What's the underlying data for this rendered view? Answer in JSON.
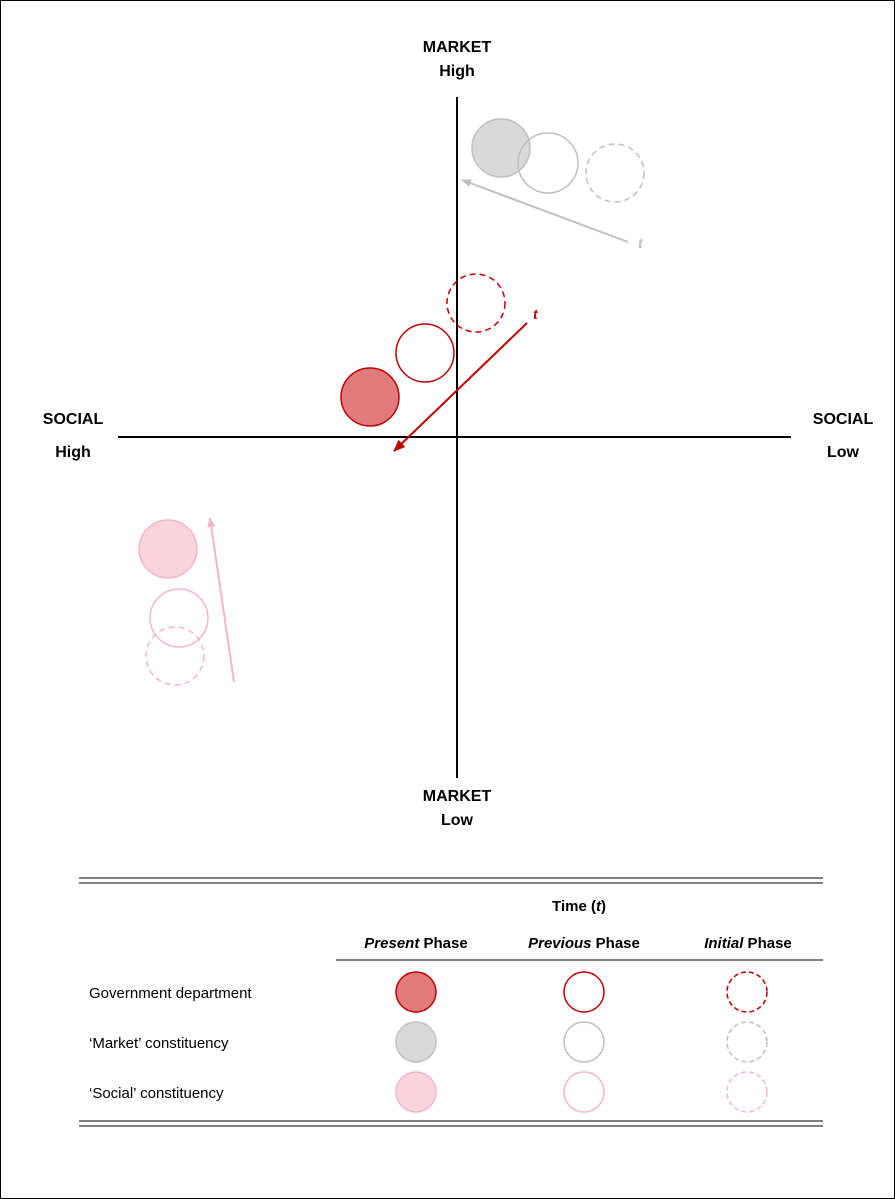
{
  "axes": {
    "top": {
      "line1": "MARKET",
      "line2": "High"
    },
    "bottom": {
      "line1": "MARKET",
      "line2": "Low"
    },
    "left": {
      "line1": "SOCIAL",
      "line2": "High"
    },
    "right": {
      "line1": "SOCIAL",
      "line2": "Low"
    }
  },
  "time_marker": "t",
  "legend": {
    "time_heading": {
      "prefix": "Time (",
      "symbol": "t",
      "suffix": ")"
    },
    "columns": [
      {
        "emphasis": "Present",
        "rest": " Phase"
      },
      {
        "emphasis": "Previous",
        "rest": " Phase"
      },
      {
        "emphasis": "Initial",
        "rest": " Phase"
      }
    ],
    "rows": [
      {
        "label": "Government department"
      },
      {
        "label": "‘Market’ constituency"
      },
      {
        "label": "‘Social’ constituency"
      }
    ]
  },
  "colors": {
    "government_stroke": "#c00000",
    "government_fill": "#e07b7b",
    "market_stroke": "#bfbfbf",
    "market_fill": "#d9d9d9",
    "social_stroke": "#f4b6c6",
    "social_fill": "#f9d3dd"
  },
  "phase_styles": {
    "present": "filled",
    "previous": "outline",
    "initial": "dashed"
  }
}
